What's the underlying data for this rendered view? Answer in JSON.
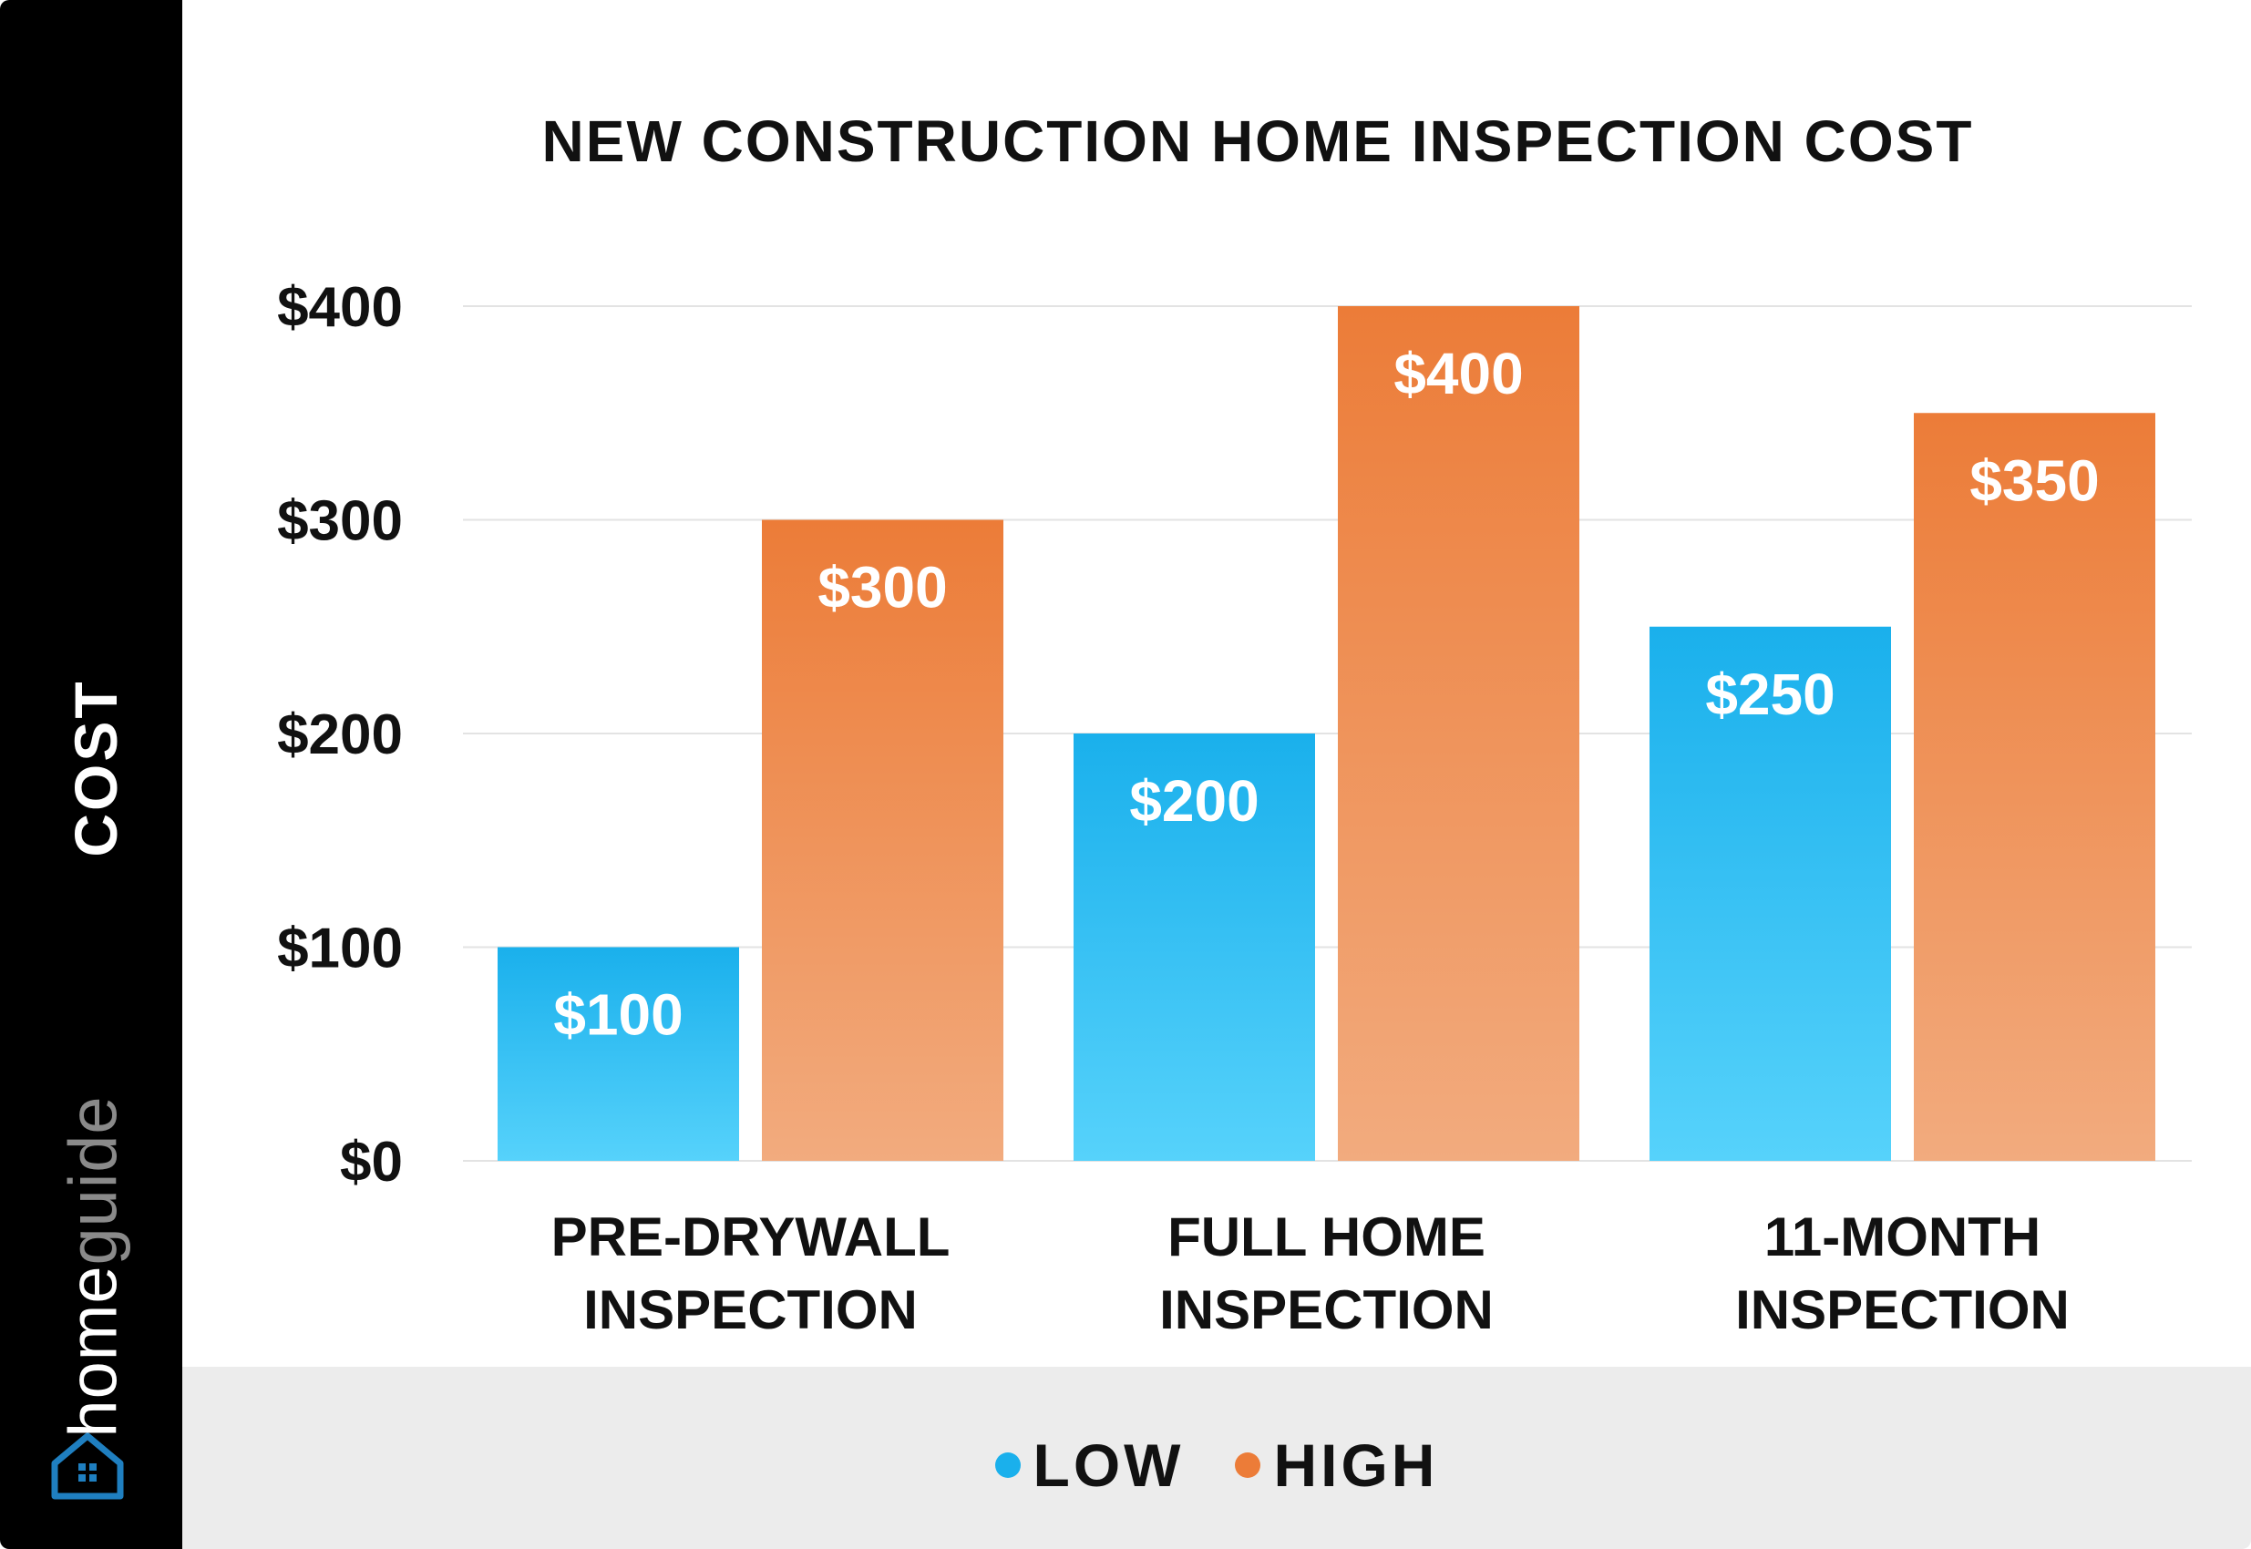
{
  "brand": {
    "part1": "home",
    "part2": "guide",
    "logo_icon": "house-icon"
  },
  "chart_data": {
    "type": "bar",
    "title": "NEW CONSTRUCTION HOME INSPECTION COST",
    "ylabel": "COST",
    "xlabel": "",
    "categories": [
      [
        "PRE-DRYWALL",
        "INSPECTION"
      ],
      [
        "FULL HOME",
        "INSPECTION"
      ],
      [
        "11-MONTH",
        "INSPECTION"
      ]
    ],
    "series": [
      {
        "name": "LOW",
        "values": [
          100,
          200,
          250
        ],
        "labels": [
          "$100",
          "$200",
          "$250"
        ],
        "color": "#1ab0ec",
        "color_light": "#56d2fb"
      },
      {
        "name": "HIGH",
        "values": [
          300,
          400,
          350
        ],
        "labels": [
          "$300",
          "$400",
          "$350"
        ],
        "color": "#ec7c38",
        "color_light": "#f2ab7e"
      }
    ],
    "yticks": [
      0,
      100,
      200,
      300,
      400
    ],
    "ytick_labels": [
      "$0",
      "$100",
      "$200",
      "$300",
      "$400"
    ],
    "ylim": [
      0,
      400
    ],
    "grid": true,
    "legend": "bottom"
  }
}
